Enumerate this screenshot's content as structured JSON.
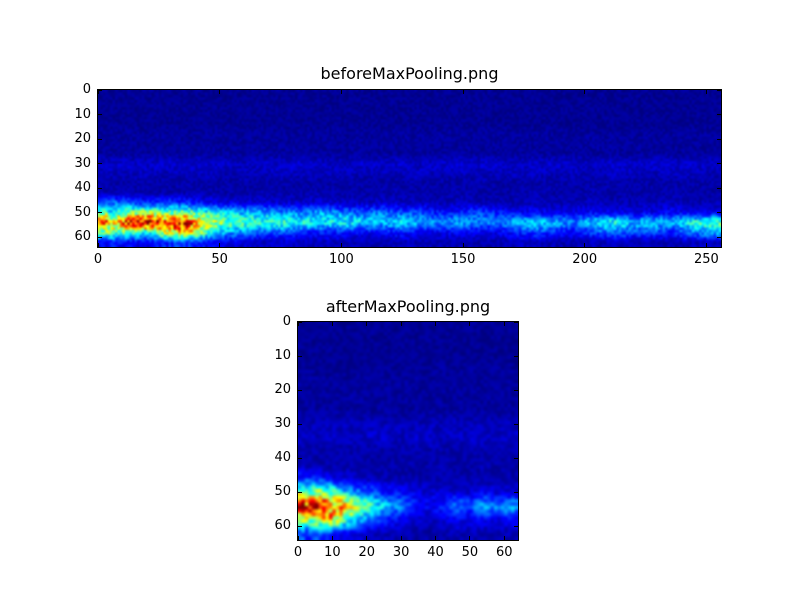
{
  "figure": {
    "background": "#ffffff",
    "heatmap_background": "#000080",
    "axis_color": "#000000"
  },
  "chart_data": [
    {
      "type": "heatmap",
      "title": "beforeMaxPooling.png",
      "colormap": "jet",
      "x_range": [
        0,
        256
      ],
      "y_range": [
        0,
        64
      ],
      "y_inverted_origin_top": true,
      "x_ticks": [
        0,
        50,
        100,
        150,
        200,
        250
      ],
      "y_ticks": [
        0,
        10,
        20,
        30,
        40,
        50,
        60
      ],
      "grid_rows": 16,
      "grid_cols": 32,
      "values": [
        [
          0.02,
          0.02,
          0.02,
          0.02,
          0.02,
          0.02,
          0.02,
          0.02,
          0.02,
          0.02,
          0.02,
          0.02,
          0.02,
          0.02,
          0.02,
          0.02,
          0.02,
          0.02,
          0.02,
          0.02,
          0.02,
          0.02,
          0.02,
          0.02,
          0.02,
          0.02,
          0.02,
          0.02,
          0.02,
          0.02,
          0.02,
          0.02
        ],
        [
          0.02,
          0.02,
          0.02,
          0.02,
          0.02,
          0.02,
          0.02,
          0.02,
          0.02,
          0.02,
          0.02,
          0.02,
          0.02,
          0.02,
          0.02,
          0.02,
          0.02,
          0.02,
          0.02,
          0.02,
          0.02,
          0.02,
          0.02,
          0.02,
          0.02,
          0.02,
          0.02,
          0.02,
          0.02,
          0.02,
          0.02,
          0.02
        ],
        [
          0.02,
          0.02,
          0.02,
          0.02,
          0.02,
          0.02,
          0.02,
          0.02,
          0.02,
          0.02,
          0.02,
          0.02,
          0.02,
          0.02,
          0.02,
          0.02,
          0.02,
          0.02,
          0.02,
          0.02,
          0.02,
          0.02,
          0.02,
          0.02,
          0.02,
          0.02,
          0.02,
          0.02,
          0.02,
          0.02,
          0.02,
          0.02
        ],
        [
          0.02,
          0.02,
          0.02,
          0.02,
          0.02,
          0.02,
          0.02,
          0.02,
          0.02,
          0.02,
          0.02,
          0.02,
          0.02,
          0.02,
          0.02,
          0.02,
          0.02,
          0.02,
          0.02,
          0.02,
          0.02,
          0.02,
          0.02,
          0.02,
          0.02,
          0.02,
          0.02,
          0.02,
          0.02,
          0.02,
          0.02,
          0.02
        ],
        [
          0.03,
          0.03,
          0.03,
          0.03,
          0.03,
          0.03,
          0.03,
          0.03,
          0.03,
          0.03,
          0.03,
          0.03,
          0.03,
          0.03,
          0.03,
          0.03,
          0.03,
          0.03,
          0.03,
          0.03,
          0.03,
          0.03,
          0.03,
          0.03,
          0.03,
          0.03,
          0.03,
          0.03,
          0.03,
          0.03,
          0.03,
          0.03
        ],
        [
          0.03,
          0.03,
          0.03,
          0.03,
          0.03,
          0.03,
          0.03,
          0.03,
          0.03,
          0.03,
          0.03,
          0.03,
          0.03,
          0.03,
          0.03,
          0.03,
          0.03,
          0.03,
          0.03,
          0.03,
          0.03,
          0.03,
          0.03,
          0.03,
          0.03,
          0.03,
          0.03,
          0.03,
          0.03,
          0.03,
          0.03,
          0.03
        ],
        [
          0.03,
          0.03,
          0.03,
          0.03,
          0.03,
          0.03,
          0.03,
          0.03,
          0.03,
          0.03,
          0.03,
          0.03,
          0.03,
          0.03,
          0.03,
          0.03,
          0.03,
          0.03,
          0.03,
          0.03,
          0.03,
          0.03,
          0.03,
          0.03,
          0.03,
          0.03,
          0.03,
          0.03,
          0.03,
          0.03,
          0.03,
          0.03
        ],
        [
          0.07,
          0.08,
          0.06,
          0.09,
          0.07,
          0.08,
          0.07,
          0.06,
          0.08,
          0.07,
          0.09,
          0.07,
          0.06,
          0.08,
          0.07,
          0.08,
          0.06,
          0.07,
          0.09,
          0.07,
          0.08,
          0.06,
          0.07,
          0.08,
          0.07,
          0.06,
          0.08,
          0.07,
          0.09,
          0.07,
          0.08,
          0.07
        ],
        [
          0.06,
          0.05,
          0.07,
          0.05,
          0.06,
          0.07,
          0.05,
          0.06,
          0.05,
          0.07,
          0.06,
          0.05,
          0.07,
          0.05,
          0.06,
          0.05,
          0.07,
          0.06,
          0.05,
          0.07,
          0.05,
          0.06,
          0.07,
          0.05,
          0.06,
          0.05,
          0.07,
          0.06,
          0.05,
          0.07,
          0.06,
          0.05
        ],
        [
          0.04,
          0.04,
          0.04,
          0.04,
          0.04,
          0.04,
          0.04,
          0.04,
          0.04,
          0.04,
          0.04,
          0.04,
          0.04,
          0.04,
          0.04,
          0.04,
          0.04,
          0.04,
          0.04,
          0.04,
          0.04,
          0.04,
          0.04,
          0.04,
          0.04,
          0.04,
          0.04,
          0.04,
          0.04,
          0.04,
          0.04,
          0.04
        ],
        [
          0.04,
          0.05,
          0.04,
          0.04,
          0.05,
          0.04,
          0.04,
          0.04,
          0.05,
          0.04,
          0.04,
          0.05,
          0.04,
          0.04,
          0.04,
          0.05,
          0.04,
          0.04,
          0.05,
          0.04,
          0.04,
          0.04,
          0.05,
          0.04,
          0.04,
          0.05,
          0.04,
          0.04,
          0.04,
          0.05,
          0.04,
          0.04
        ],
        [
          0.25,
          0.2,
          0.15,
          0.2,
          0.15,
          0.12,
          0.1,
          0.08,
          0.08,
          0.08,
          0.07,
          0.08,
          0.07,
          0.06,
          0.07,
          0.06,
          0.06,
          0.05,
          0.06,
          0.05,
          0.05,
          0.05,
          0.06,
          0.05,
          0.05,
          0.06,
          0.05,
          0.05,
          0.05,
          0.06,
          0.05,
          0.05
        ],
        [
          0.3,
          0.5,
          0.55,
          0.45,
          0.5,
          0.4,
          0.35,
          0.3,
          0.3,
          0.25,
          0.25,
          0.3,
          0.25,
          0.2,
          0.25,
          0.2,
          0.2,
          0.15,
          0.15,
          0.2,
          0.15,
          0.12,
          0.12,
          0.1,
          0.1,
          0.12,
          0.1,
          0.1,
          0.1,
          0.12,
          0.1,
          0.1
        ],
        [
          0.6,
          0.85,
          1.0,
          0.8,
          0.9,
          0.6,
          0.5,
          0.45,
          0.4,
          0.45,
          0.4,
          0.35,
          0.4,
          0.35,
          0.3,
          0.35,
          0.3,
          0.25,
          0.3,
          0.25,
          0.25,
          0.3,
          0.35,
          0.3,
          0.25,
          0.35,
          0.4,
          0.3,
          0.35,
          0.3,
          0.4,
          0.45
        ],
        [
          0.5,
          0.45,
          0.4,
          0.6,
          0.7,
          0.45,
          0.3,
          0.25,
          0.2,
          0.2,
          0.15,
          0.15,
          0.15,
          0.12,
          0.12,
          0.15,
          0.12,
          0.1,
          0.12,
          0.1,
          0.1,
          0.15,
          0.2,
          0.15,
          0.12,
          0.2,
          0.25,
          0.2,
          0.2,
          0.15,
          0.25,
          0.3
        ],
        [
          0.15,
          0.12,
          0.1,
          0.15,
          0.2,
          0.12,
          0.1,
          0.08,
          0.06,
          0.08,
          0.06,
          0.06,
          0.06,
          0.05,
          0.05,
          0.06,
          0.05,
          0.05,
          0.05,
          0.05,
          0.05,
          0.06,
          0.06,
          0.05,
          0.05,
          0.06,
          0.06,
          0.05,
          0.05,
          0.05,
          0.06,
          0.06
        ]
      ]
    },
    {
      "type": "heatmap",
      "title": "afterMaxPooling.png",
      "colormap": "jet",
      "x_range": [
        0,
        64
      ],
      "y_range": [
        0,
        64
      ],
      "y_inverted_origin_top": true,
      "x_ticks": [
        0,
        10,
        20,
        30,
        40,
        50,
        60
      ],
      "y_ticks": [
        0,
        10,
        20,
        30,
        40,
        50,
        60
      ],
      "grid_rows": 16,
      "grid_cols": 16,
      "values": [
        [
          0.02,
          0.02,
          0.02,
          0.02,
          0.02,
          0.02,
          0.02,
          0.02,
          0.02,
          0.02,
          0.02,
          0.02,
          0.02,
          0.02,
          0.02,
          0.02
        ],
        [
          0.02,
          0.02,
          0.02,
          0.02,
          0.02,
          0.02,
          0.02,
          0.02,
          0.02,
          0.02,
          0.02,
          0.02,
          0.02,
          0.02,
          0.02,
          0.02
        ],
        [
          0.02,
          0.02,
          0.02,
          0.02,
          0.02,
          0.02,
          0.02,
          0.02,
          0.02,
          0.02,
          0.02,
          0.02,
          0.02,
          0.02,
          0.02,
          0.02
        ],
        [
          0.03,
          0.02,
          0.03,
          0.02,
          0.03,
          0.02,
          0.03,
          0.02,
          0.03,
          0.02,
          0.03,
          0.02,
          0.03,
          0.02,
          0.03,
          0.02
        ],
        [
          0.03,
          0.03,
          0.03,
          0.03,
          0.03,
          0.03,
          0.03,
          0.03,
          0.03,
          0.03,
          0.03,
          0.03,
          0.03,
          0.03,
          0.03,
          0.03
        ],
        [
          0.03,
          0.03,
          0.03,
          0.03,
          0.03,
          0.03,
          0.03,
          0.03,
          0.03,
          0.03,
          0.03,
          0.03,
          0.03,
          0.03,
          0.03,
          0.03
        ],
        [
          0.03,
          0.03,
          0.03,
          0.03,
          0.03,
          0.03,
          0.03,
          0.03,
          0.03,
          0.03,
          0.03,
          0.03,
          0.03,
          0.03,
          0.03,
          0.03
        ],
        [
          0.05,
          0.06,
          0.05,
          0.06,
          0.05,
          0.06,
          0.05,
          0.06,
          0.05,
          0.06,
          0.05,
          0.06,
          0.05,
          0.06,
          0.05,
          0.06
        ],
        [
          0.07,
          0.06,
          0.08,
          0.07,
          0.06,
          0.08,
          0.07,
          0.06,
          0.07,
          0.08,
          0.06,
          0.07,
          0.08,
          0.07,
          0.06,
          0.07
        ],
        [
          0.04,
          0.04,
          0.04,
          0.04,
          0.04,
          0.04,
          0.04,
          0.04,
          0.04,
          0.04,
          0.04,
          0.04,
          0.04,
          0.04,
          0.04,
          0.04
        ],
        [
          0.04,
          0.05,
          0.04,
          0.04,
          0.05,
          0.04,
          0.04,
          0.05,
          0.04,
          0.04,
          0.05,
          0.04,
          0.04,
          0.05,
          0.04,
          0.04
        ],
        [
          0.2,
          0.15,
          0.1,
          0.08,
          0.06,
          0.05,
          0.05,
          0.04,
          0.04,
          0.04,
          0.04,
          0.04,
          0.04,
          0.04,
          0.04,
          0.04
        ],
        [
          0.4,
          0.55,
          0.45,
          0.3,
          0.25,
          0.2,
          0.15,
          0.12,
          0.1,
          0.08,
          0.08,
          0.08,
          0.08,
          0.1,
          0.08,
          0.08
        ],
        [
          0.8,
          1.0,
          0.7,
          0.75,
          0.5,
          0.4,
          0.3,
          0.25,
          0.15,
          0.12,
          0.15,
          0.25,
          0.2,
          0.3,
          0.25,
          0.3
        ],
        [
          0.5,
          0.6,
          0.7,
          0.45,
          0.3,
          0.2,
          0.15,
          0.12,
          0.08,
          0.06,
          0.08,
          0.12,
          0.1,
          0.12,
          0.1,
          0.12
        ],
        [
          0.15,
          0.2,
          0.15,
          0.1,
          0.08,
          0.06,
          0.05,
          0.05,
          0.04,
          0.04,
          0.04,
          0.05,
          0.05,
          0.05,
          0.05,
          0.06
        ]
      ]
    }
  ]
}
